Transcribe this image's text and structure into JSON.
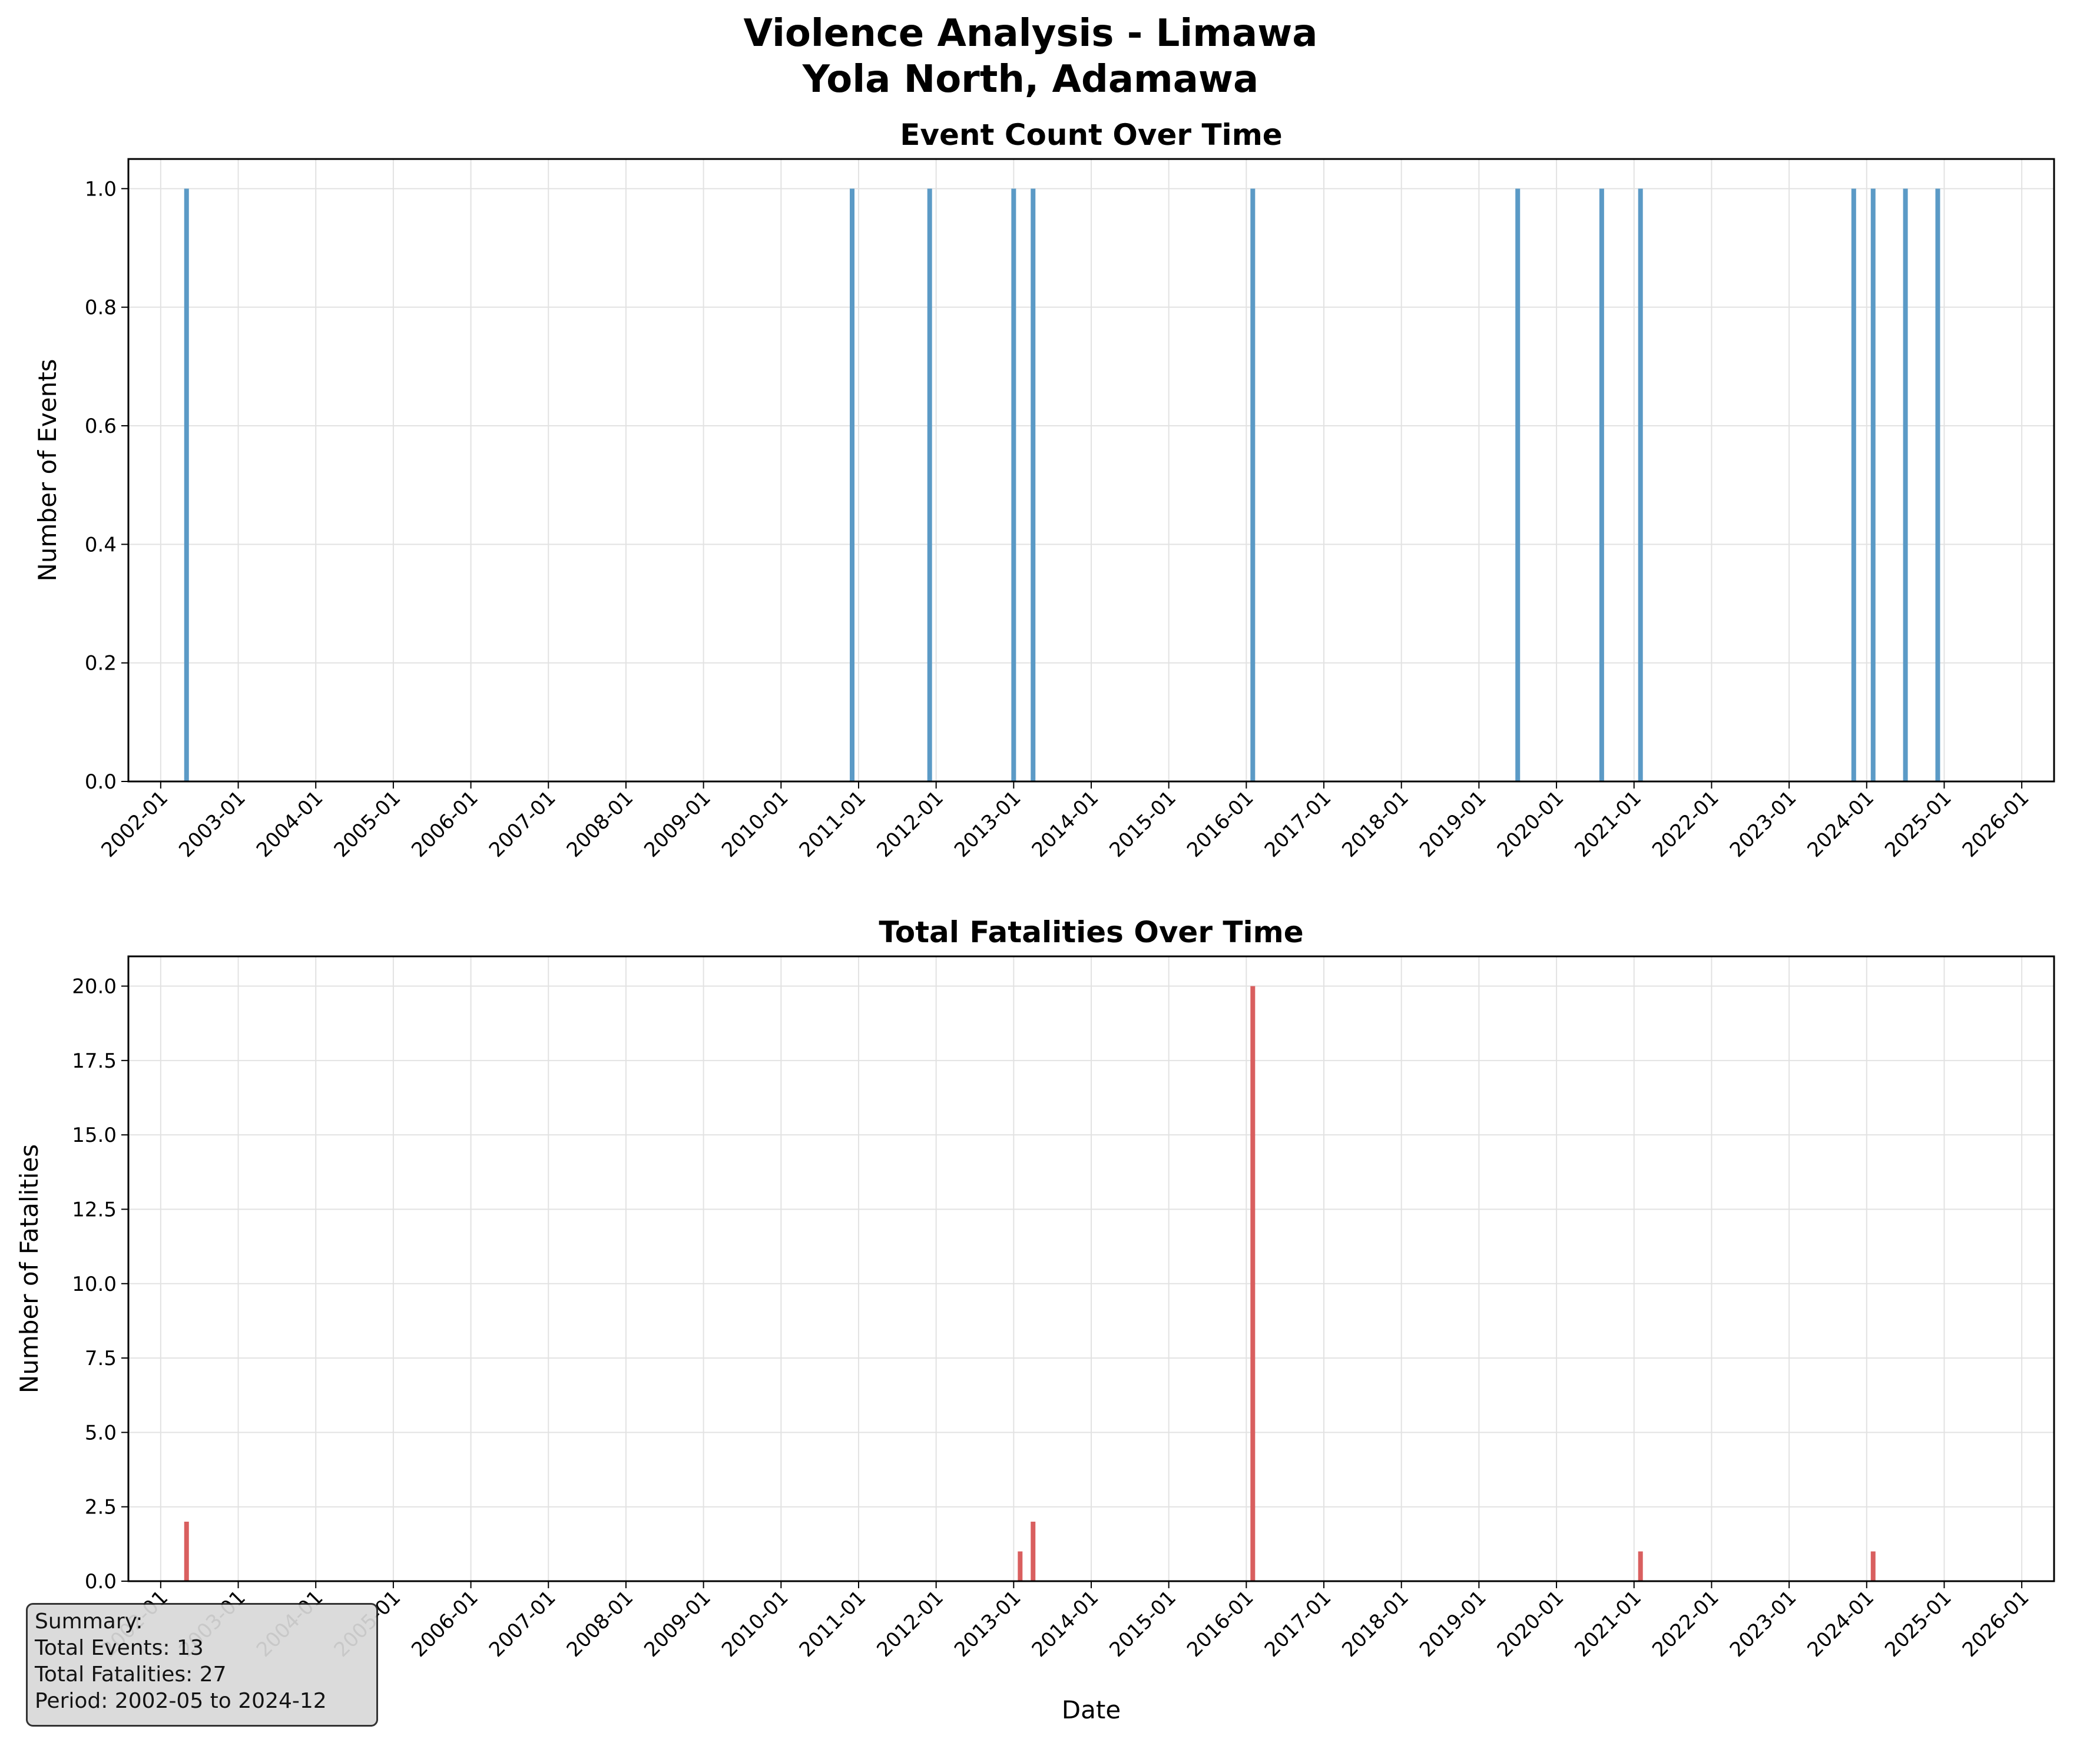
{
  "title": [
    "Violence Analysis - Limawa",
    "Yola North, Adamawa"
  ],
  "summary": {
    "heading": "Summary:",
    "events": "Total Events: 13",
    "fatalities": "Total Fatalities: 27",
    "period": "Period: 2002-05 to 2024-12"
  },
  "colors": {
    "events": "#5b9ac6",
    "fatalities": "#d95f5f",
    "grid": "#e2e2e2"
  },
  "chart_data": [
    {
      "type": "bar",
      "title": "Event Count Over Time",
      "xlabel": "",
      "ylabel": "Number of Events",
      "x_ticks": [
        "2002-01",
        "2003-01",
        "2004-01",
        "2005-01",
        "2006-01",
        "2007-01",
        "2008-01",
        "2009-01",
        "2010-01",
        "2011-01",
        "2012-01",
        "2013-01",
        "2014-01",
        "2015-01",
        "2016-01",
        "2017-01",
        "2018-01",
        "2019-01",
        "2020-01",
        "2021-01",
        "2022-01",
        "2023-01",
        "2024-01",
        "2025-01",
        "2026-01"
      ],
      "xlim": [
        "2001-08",
        "2026-06"
      ],
      "y_ticks": [
        "0.0",
        "0.2",
        "0.4",
        "0.6",
        "0.8",
        "1.0"
      ],
      "ylim": [
        0,
        1.05
      ],
      "grid": true,
      "series": [
        {
          "x": [
            "2002-05",
            "2010-12",
            "2011-12",
            "2013-01",
            "2013-04",
            "2016-02",
            "2019-07",
            "2020-08",
            "2021-02",
            "2023-11",
            "2024-02",
            "2024-07",
            "2024-12"
          ],
          "values": [
            1,
            1,
            1,
            1,
            1,
            1,
            1,
            1,
            1,
            1,
            1,
            1,
            1
          ]
        }
      ]
    },
    {
      "type": "bar",
      "title": "Total Fatalities Over Time",
      "xlabel": "Date",
      "ylabel": "Number of Fatalities",
      "x_ticks": [
        "2002-01",
        "2003-01",
        "2004-01",
        "2005-01",
        "2006-01",
        "2007-01",
        "2008-01",
        "2009-01",
        "2010-01",
        "2011-01",
        "2012-01",
        "2013-01",
        "2014-01",
        "2015-01",
        "2016-01",
        "2017-01",
        "2018-01",
        "2019-01",
        "2020-01",
        "2021-01",
        "2022-01",
        "2023-01",
        "2024-01",
        "2025-01",
        "2026-01"
      ],
      "xlim": [
        "2001-08",
        "2026-06"
      ],
      "y_ticks": [
        "0.0",
        "2.5",
        "5.0",
        "7.5",
        "10.0",
        "12.5",
        "15.0",
        "17.5",
        "20.0"
      ],
      "ylim": [
        0,
        21
      ],
      "grid": true,
      "series": [
        {
          "x": [
            "2002-05",
            "2013-02",
            "2013-04",
            "2016-02",
            "2021-02",
            "2024-02"
          ],
          "values": [
            2,
            1,
            2,
            20,
            1,
            1
          ]
        }
      ]
    }
  ]
}
